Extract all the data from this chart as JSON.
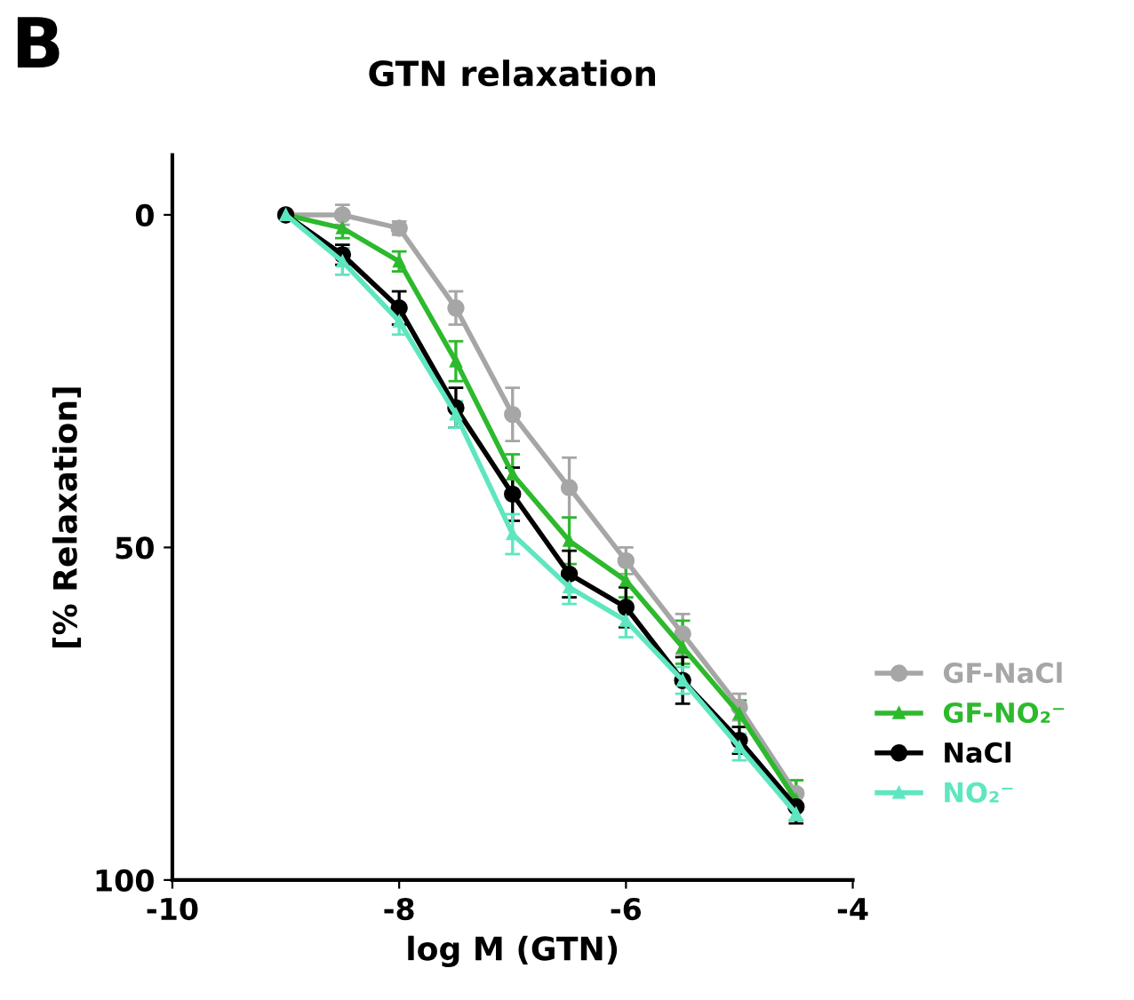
{
  "chart_data": {
    "type": "line",
    "title": "GTN relaxation",
    "xlabel": "log M (GTN)",
    "ylabel": "[% Relaxation]",
    "annotations": [
      "B"
    ],
    "x": [
      -9,
      -8.5,
      -8,
      -7.5,
      -7,
      -6.5,
      -6,
      -5.5,
      -5,
      -4.5
    ],
    "series": [
      {
        "name": "GF-NaCl",
        "color": "#a6a6a6",
        "marker": "circle",
        "values": [
          0,
          0,
          2,
          14,
          30,
          41,
          52,
          63,
          74,
          87
        ],
        "errors": [
          null,
          1.5,
          1,
          2.5,
          4,
          4.5,
          2,
          3,
          2,
          2
        ]
      },
      {
        "name": "GF-NO₂⁻",
        "color": "#2db92d",
        "marker": "triangle",
        "values": [
          0,
          2,
          7,
          22,
          39,
          49,
          55,
          65,
          75,
          88
        ],
        "errors": [
          null,
          1.5,
          1.5,
          3,
          3,
          3.5,
          2.5,
          [
            61,
            67.5
          ],
          2,
          3
        ]
      },
      {
        "name": "NaCl",
        "color": "#000000",
        "marker": "circle",
        "values": [
          0,
          6,
          14,
          29,
          42,
          54,
          59,
          70,
          79,
          89
        ],
        "errors": [
          null,
          1.5,
          2.5,
          3,
          4,
          3.5,
          3,
          3.5,
          2,
          2.5
        ]
      },
      {
        "name": "NO₂⁻",
        "color": "#5ee6c0",
        "marker": "triangle",
        "values": [
          0,
          7,
          16,
          30,
          48,
          56,
          61,
          70,
          80,
          90
        ],
        "errors": [
          null,
          2,
          2,
          2,
          3,
          2.5,
          2.5,
          2,
          2,
          1
        ]
      }
    ],
    "xlim": [
      -10,
      -4
    ],
    "xticks": [
      -10,
      -8,
      -6,
      -4
    ],
    "ylim": [
      100,
      -9
    ],
    "yticks": [
      0,
      50,
      100
    ],
    "grid": false,
    "legend": "right",
    "line_style": "solid"
  }
}
